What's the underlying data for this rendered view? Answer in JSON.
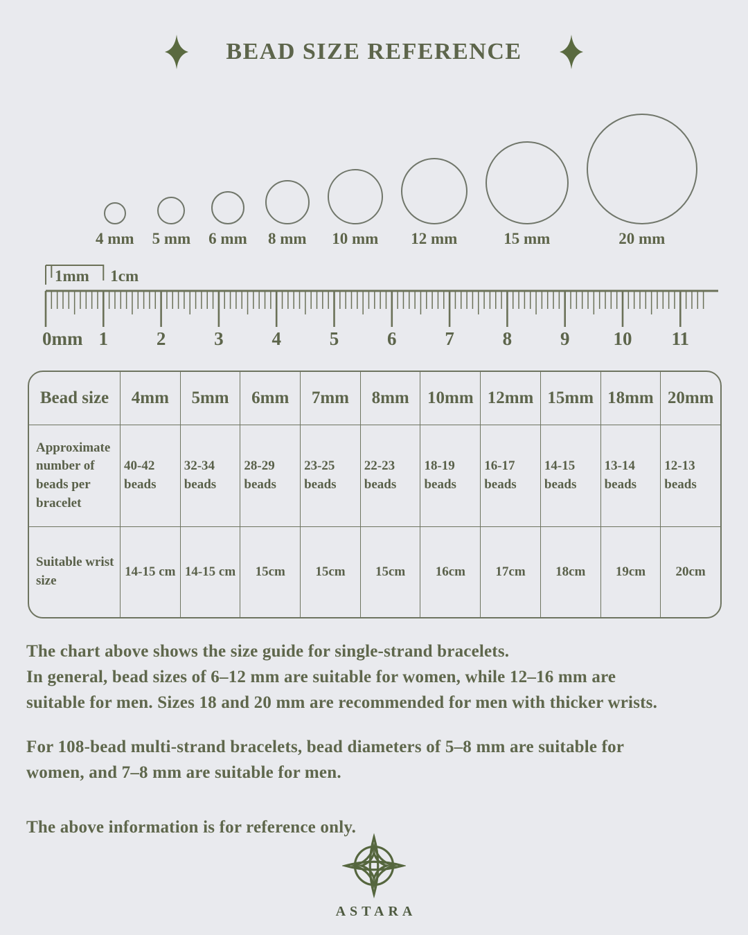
{
  "page": {
    "title": "BEAD SIZE REFERENCE",
    "brand": "ASTARA"
  },
  "bead_circles": [
    {
      "label": "4 mm",
      "mm": 4
    },
    {
      "label": "5 mm",
      "mm": 5
    },
    {
      "label": "6 mm",
      "mm": 6
    },
    {
      "label": "8 mm",
      "mm": 8
    },
    {
      "label": "10 mm",
      "mm": 10
    },
    {
      "label": "12 mm",
      "mm": 12
    },
    {
      "label": "15 mm",
      "mm": 15
    },
    {
      "label": "20 mm",
      "mm": 20
    }
  ],
  "ruler": {
    "legend_small": "1mm",
    "legend_large": "1cm",
    "zero_label": "0mm",
    "cm_labels": [
      "1",
      "2",
      "3",
      "4",
      "5",
      "6",
      "7",
      "8",
      "9",
      "10",
      "11"
    ]
  },
  "size_table": {
    "header": [
      "Bead size",
      "4mm",
      "5mm",
      "6mm",
      "7mm",
      "8mm",
      "10mm",
      "12mm",
      "15mm",
      "18mm",
      "20mm"
    ],
    "rows": [
      {
        "label": "Approximate number of beads per bracelet",
        "values": [
          "40-42 beads",
          "32-34 beads",
          "28-29 beads",
          "23-25 beads",
          "22-23 beads",
          "18-19 beads",
          "16-17 beads",
          "14-15 beads",
          "13-14 beads",
          "12-13 beads"
        ]
      },
      {
        "label": "Suitable wrist size",
        "values": [
          "14-15 cm",
          "14-15 cm",
          "15cm",
          "15cm",
          "15cm",
          "16cm",
          "17cm",
          "18cm",
          "19cm",
          "20cm"
        ]
      }
    ]
  },
  "notes": [
    [
      "The chart above shows the size guide for single-strand bracelets.",
      "In general, bead sizes of 6–12 mm are suitable for women, while 12–16 mm are",
      "suitable for men. Sizes 18 and 20 mm are recommended for men with thicker wrists."
    ],
    [
      "For 108-bead multi-strand bracelets, bead diameters of 5–8 mm are suitable for",
      "women, and 7–8 mm are suitable for men."
    ],
    [
      "The above information is for reference only."
    ]
  ],
  "colors": {
    "ink": "#5d654b",
    "green": "#5a6a40",
    "border": "#6e7460",
    "background": "#e9eaee"
  }
}
